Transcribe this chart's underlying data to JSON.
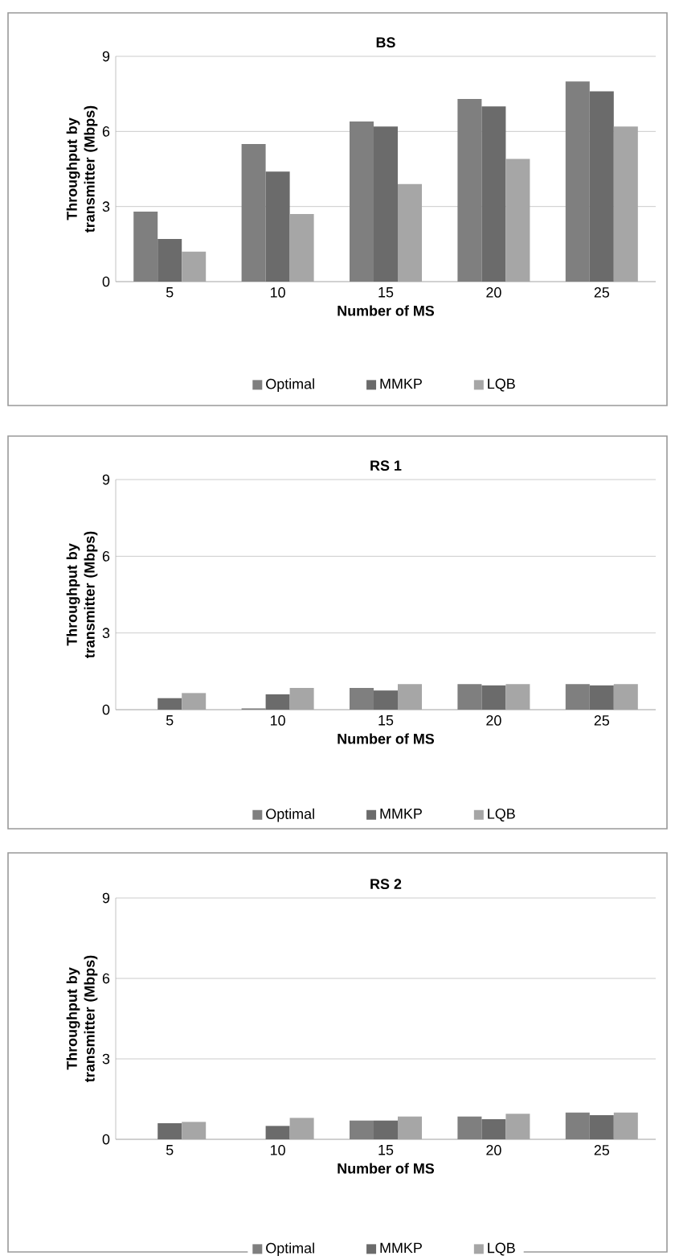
{
  "chart_data": [
    {
      "type": "bar",
      "title": "BS",
      "xlabel": "Number of MS",
      "ylabel": "Throughput by transmitter (Mbps)",
      "categories": [
        "5",
        "10",
        "15",
        "20",
        "25"
      ],
      "ylim": [
        0,
        9
      ],
      "yticks": [
        0,
        3,
        6,
        9
      ],
      "grid": "y",
      "legend": "bottom",
      "series": [
        {
          "name": "Optimal",
          "color": "#7f7f7f",
          "values": [
            2.8,
            5.5,
            6.4,
            7.3,
            8.0
          ]
        },
        {
          "name": "MMKP",
          "color": "#6b6b6b",
          "values": [
            1.7,
            4.4,
            6.2,
            7.0,
            7.6
          ]
        },
        {
          "name": "LQB",
          "color": "#a6a6a6",
          "values": [
            1.2,
            2.7,
            3.9,
            4.9,
            6.2
          ]
        }
      ]
    },
    {
      "type": "bar",
      "title": "RS 1",
      "xlabel": "Number of MS",
      "ylabel": "Throughput by transmitter (Mbps)",
      "categories": [
        "5",
        "10",
        "15",
        "20",
        "25"
      ],
      "ylim": [
        0,
        9
      ],
      "yticks": [
        0,
        3,
        6,
        9
      ],
      "grid": "y",
      "legend": "bottom",
      "series": [
        {
          "name": "Optimal",
          "color": "#7f7f7f",
          "values": [
            0,
            0.05,
            0.85,
            1.0,
            1.0
          ]
        },
        {
          "name": "MMKP",
          "color": "#6b6b6b",
          "values": [
            0.45,
            0.6,
            0.75,
            0.95,
            0.95
          ]
        },
        {
          "name": "LQB",
          "color": "#a6a6a6",
          "values": [
            0.65,
            0.85,
            1.0,
            1.0,
            1.0
          ]
        }
      ]
    },
    {
      "type": "bar",
      "title": "RS 2",
      "xlabel": "Number of MS",
      "ylabel": "Throughput by transmitter (Mbps)",
      "categories": [
        "5",
        "10",
        "15",
        "20",
        "25"
      ],
      "ylim": [
        0,
        9
      ],
      "yticks": [
        0,
        3,
        6,
        9
      ],
      "grid": "y",
      "legend": "bottom",
      "series": [
        {
          "name": "Optimal",
          "color": "#7f7f7f",
          "values": [
            0,
            0,
            0.7,
            0.85,
            1.0
          ]
        },
        {
          "name": "MMKP",
          "color": "#6b6b6b",
          "values": [
            0.6,
            0.5,
            0.7,
            0.75,
            0.9
          ]
        },
        {
          "name": "LQB",
          "color": "#a6a6a6",
          "values": [
            0.65,
            0.8,
            0.85,
            0.95,
            1.0
          ]
        }
      ]
    }
  ]
}
